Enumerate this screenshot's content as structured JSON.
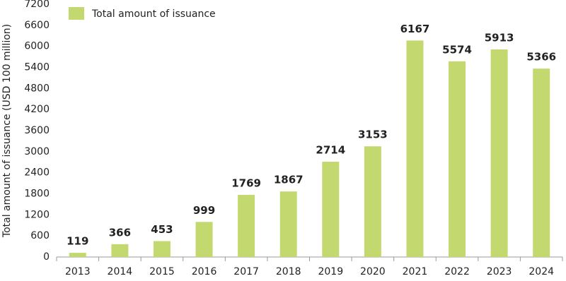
{
  "chart_data": {
    "type": "bar",
    "y_label": "Total amount of issuance (USD 100 million)",
    "categories": [
      "2013",
      "2014",
      "2015",
      "2016",
      "2017",
      "2018",
      "2019",
      "2020",
      "2021",
      "2022",
      "2023",
      "2024"
    ],
    "series": [
      {
        "name": "Total amount of issuance",
        "color": "#c3d96f",
        "values": [
          119,
          366,
          453,
          999,
          1769,
          1867,
          2714,
          3153,
          6167,
          5574,
          5913,
          5366
        ]
      }
    ],
    "ylim": [
      0,
      7200
    ],
    "yticks": [
      0,
      600,
      1200,
      1800,
      2400,
      3000,
      3600,
      4200,
      4800,
      5400,
      6000,
      6600,
      7200
    ],
    "grid": false,
    "legend": "top-left"
  }
}
